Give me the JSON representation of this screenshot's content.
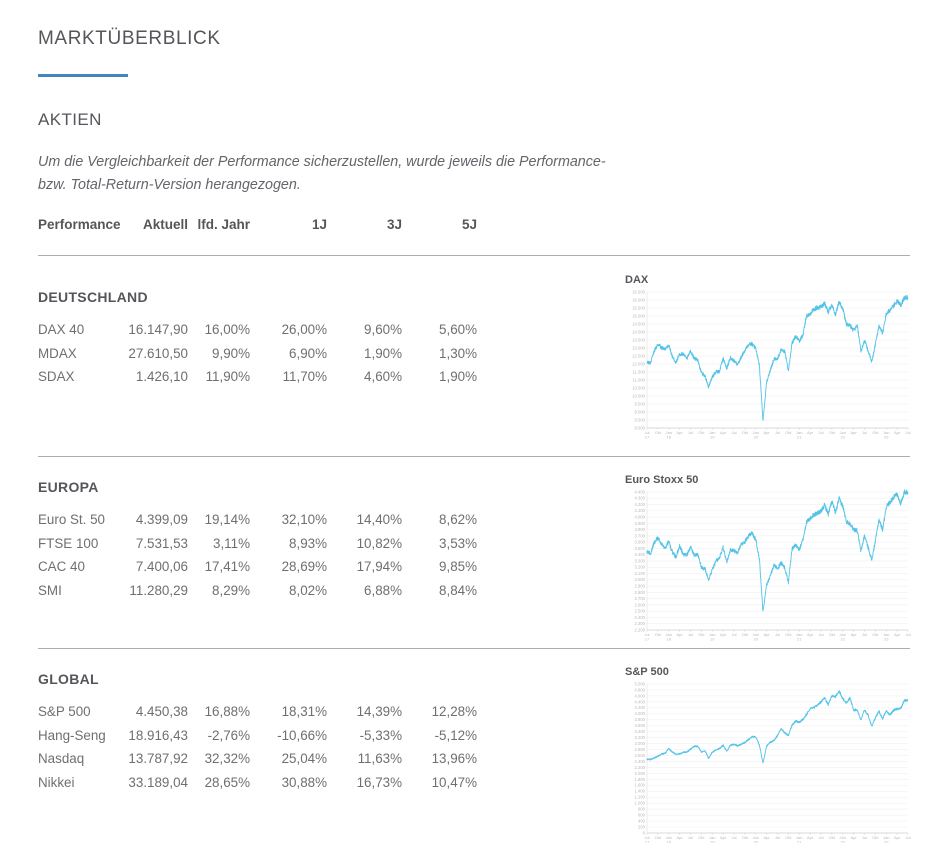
{
  "page": {
    "title": "MARKTÜBERBLICK",
    "aktien_heading": "AKTIEN",
    "note_line1": "Um die Vergleichbarkeit der Performance sicherzustellen, wurde jeweils die Performance-",
    "note_line2": "bzw. Total-Return-Version herangezogen."
  },
  "colors": {
    "accent_blue": "#4285bf",
    "chart_line": "#55c3e7",
    "heading_gray": "#54565a",
    "text_gray": "#6d6f72",
    "divider_gray": "#adadad"
  },
  "table": {
    "headers": [
      "Performance",
      "Aktuell",
      "lfd. Jahr",
      "1J",
      "3J",
      "5J"
    ]
  },
  "sections": [
    {
      "title": "DEUTSCHLAND",
      "chart_title": "DAX",
      "rows": [
        {
          "name": "DAX 40",
          "values": [
            "16.147,90",
            "16,00%",
            "26,00%",
            "9,60%",
            "5,60%"
          ]
        },
        {
          "name": "MDAX",
          "values": [
            "27.610,50",
            "9,90%",
            "6,90%",
            "1,90%",
            "1,30%"
          ]
        },
        {
          "name": "SDAX",
          "values": [
            "1.426,10",
            "11,90%",
            "11,70%",
            "4,60%",
            "1,90%"
          ]
        }
      ]
    },
    {
      "title": "EUROPA",
      "chart_title": "Euro Stoxx 50",
      "rows": [
        {
          "name": "Euro St. 50",
          "values": [
            "4.399,09",
            "19,14%",
            "32,10%",
            "14,40%",
            "8,62%"
          ]
        },
        {
          "name": "FTSE 100",
          "values": [
            "7.531,53",
            "3,11%",
            "8,93%",
            "10,82%",
            "3,53%"
          ]
        },
        {
          "name": "CAC 40",
          "values": [
            "7.400,06",
            "17,41%",
            "28,69%",
            "17,94%",
            "9,85%"
          ]
        },
        {
          "name": "SMI",
          "values": [
            "11.280,29",
            "8,29%",
            "8,02%",
            "6,88%",
            "8,84%"
          ]
        }
      ]
    },
    {
      "title": "GLOBAL",
      "chart_title": "S&P 500",
      "rows": [
        {
          "name": "S&P 500",
          "values": [
            "4.450,38",
            "16,88%",
            "18,31%",
            "14,39%",
            "12,28%"
          ]
        },
        {
          "name": "Hang-Seng",
          "values": [
            "18.916,43",
            "-2,76%",
            "-10,66%",
            "-5,33%",
            "-5,12%"
          ]
        },
        {
          "name": "Nasdaq",
          "values": [
            "13.787,92",
            "32,32%",
            "25,04%",
            "11,63%",
            "13,96%"
          ]
        },
        {
          "name": "Nikkei",
          "values": [
            "33.189,04",
            "28,65%",
            "30,88%",
            "16,73%",
            "10,47%"
          ]
        }
      ]
    }
  ],
  "chart_data": [
    {
      "type": "line",
      "id": "dax",
      "title": "DAX",
      "interval": "monthly",
      "x_start": "Jul 17",
      "x_end": "Jul 23",
      "x_tick_labels": [
        "Jul 17",
        "Okt",
        "Jan 18",
        "Apr",
        "Jul",
        "Okt",
        "Jan 19",
        "Apr",
        "Jul",
        "Okt",
        "Jan 20",
        "Apr",
        "Jul",
        "Okt",
        "Jan 21",
        "Apr",
        "Jul",
        "Okt",
        "Jan 22",
        "Apr",
        "Jul",
        "Okt",
        "Jan 23",
        "Apr",
        "Jul"
      ],
      "y_min": 8000,
      "y_max": 16500,
      "y_step": 500,
      "grid": true,
      "legend": "none",
      "line_color": "#55c3e7",
      "values": [
        12118,
        12056,
        12829,
        13230,
        13024,
        12918,
        13189,
        12436,
        12097,
        12612,
        12604,
        12306,
        12805,
        12364,
        12247,
        11447,
        11257,
        10559,
        11173,
        11516,
        11526,
        12344,
        11727,
        12399,
        12189,
        11939,
        12428,
        12867,
        13236,
        13249,
        12982,
        11890,
        8442,
        10862,
        11587,
        12311,
        12313,
        12945,
        12761,
        11556,
        13291,
        13719,
        13433,
        13786,
        15008,
        15136,
        15421,
        15531,
        15544,
        15835,
        15261,
        15689,
        15100,
        15885,
        15471,
        14461,
        14415,
        14098,
        14388,
        12784,
        13484,
        12835,
        12114,
        13254,
        14397,
        13924,
        15128,
        15365,
        15629,
        15922,
        15664,
        16148,
        16147
      ]
    },
    {
      "type": "line",
      "id": "euro-stoxx-50",
      "title": "Euro Stoxx 50",
      "interval": "monthly",
      "x_start": "Jul 17",
      "x_end": "Jul 23",
      "x_tick_labels": [
        "Jul 17",
        "Okt",
        "Jan 18",
        "Apr",
        "Jul",
        "Okt",
        "Jan 19",
        "Apr",
        "Jul",
        "Okt",
        "Jan 20",
        "Apr",
        "Jul",
        "Okt",
        "Jan 21",
        "Apr",
        "Jul",
        "Okt",
        "Jan 22",
        "Apr",
        "Jul",
        "Okt",
        "Jan 23",
        "Apr",
        "Jul"
      ],
      "y_min": 2200,
      "y_max": 4400,
      "y_step": 100,
      "grid": true,
      "legend": "none",
      "line_color": "#55c3e7",
      "values": [
        3449,
        3421,
        3595,
        3674,
        3570,
        3504,
        3609,
        3439,
        3362,
        3537,
        3407,
        3396,
        3525,
        3393,
        3399,
        3198,
        3173,
        3001,
        3160,
        3298,
        3352,
        3515,
        3280,
        3474,
        3467,
        3427,
        3569,
        3604,
        3704,
        3745,
        3641,
        3329,
        2486,
        2927,
        3050,
        3234,
        3174,
        3273,
        3193,
        2958,
        3493,
        3553,
        3481,
        3636,
        3919,
        3975,
        4039,
        4064,
        4089,
        4196,
        4048,
        4251,
        4063,
        4298,
        4175,
        3924,
        3903,
        3803,
        3789,
        3455,
        3708,
        3517,
        3318,
        3618,
        3965,
        3794,
        4163,
        4238,
        4315,
        4359,
        4218,
        4399,
        4399
      ]
    },
    {
      "type": "line",
      "id": "sp-500",
      "title": "S&P 500",
      "interval": "monthly",
      "x_start": "Jul 17",
      "x_end": "Jul 23",
      "x_tick_labels": [
        "Jul 17",
        "Okt",
        "Jan 18",
        "Apr",
        "Jul",
        "Okt",
        "Jan 19",
        "Apr",
        "Jul",
        "Okt",
        "Jan 20",
        "Apr",
        "Jul",
        "Okt",
        "Jan 21",
        "Apr",
        "Jul",
        "Okt",
        "Jan 22",
        "Apr",
        "Jul",
        "Okt",
        "Jan 23",
        "Apr",
        "Jul"
      ],
      "y_min": 0,
      "y_max": 5000,
      "y_step": 200,
      "grid": true,
      "legend": "none",
      "line_color": "#55c3e7",
      "values": [
        2470,
        2472,
        2519,
        2575,
        2648,
        2674,
        2824,
        2714,
        2641,
        2648,
        2705,
        2718,
        2816,
        2902,
        2914,
        2712,
        2760,
        2507,
        2704,
        2784,
        2834,
        2946,
        2752,
        2942,
        2980,
        2926,
        2977,
        3038,
        3141,
        3231,
        3226,
        2954,
        2340,
        2912,
        3044,
        3100,
        3271,
        3500,
        3363,
        3270,
        3622,
        3756,
        3714,
        3811,
        3973,
        4181,
        4204,
        4298,
        4395,
        4523,
        4308,
        4605,
        4567,
        4766,
        4516,
        4374,
        4530,
        4132,
        4132,
        3785,
        4130,
        3955,
        3586,
        3872,
        4080,
        3840,
        4077,
        3970,
        4109,
        4169,
        4180,
        4450,
        4450
      ]
    }
  ]
}
